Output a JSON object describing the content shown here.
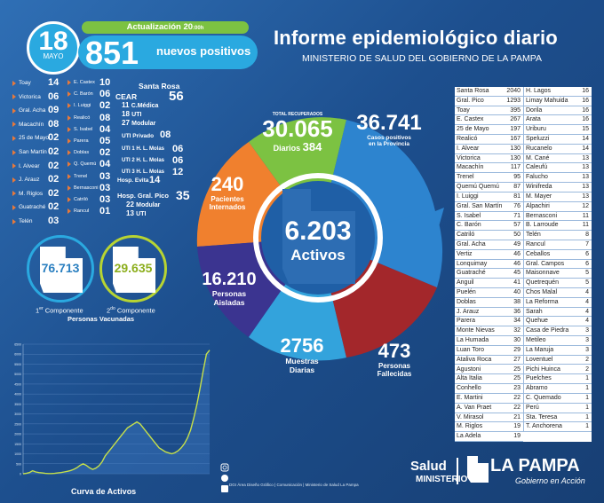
{
  "header": {
    "day": "18",
    "month": "MAYO",
    "update_label": "Actualización 20",
    "update_time": ":00h",
    "new_positive_count": "851",
    "new_positive_label": "nuevos positivos",
    "title": "Informe epidemiológico diario",
    "subtitle": "MINISTERIO DE SALUD DEL GOBIERNO DE LA PAMPA"
  },
  "colors": {
    "bg": "#1d4f8e",
    "green": "#7cc242",
    "cyan": "#2aa9e0",
    "orange": "#f0802e",
    "purple": "#3b3490",
    "lightblue": "#33a3dc",
    "red": "#a3272b",
    "blue": "#2d84cf",
    "arrow": "#e8793a"
  },
  "localities_left": [
    {
      "name": "Toay",
      "value": "14"
    },
    {
      "name": "Victorica",
      "value": "06"
    },
    {
      "name": "Gral. Acha",
      "value": "09"
    },
    {
      "name": "Macachín",
      "value": "08"
    },
    {
      "name": "25 de Mayo",
      "value": "02"
    },
    {
      "name": "San Martín",
      "value": "02"
    },
    {
      "name": "I. Alvear",
      "value": "02"
    },
    {
      "name": "J. Arauz",
      "value": "02"
    },
    {
      "name": "M. Riglos",
      "value": "02"
    },
    {
      "name": "Guatraché",
      "value": "02"
    },
    {
      "name": "Telén",
      "value": "03"
    }
  ],
  "localities_mid": [
    {
      "name": "E. Castex",
      "value": "10"
    },
    {
      "name": "C. Barón",
      "value": "06"
    },
    {
      "name": "I. Luiggi",
      "value": "02"
    },
    {
      "name": "Realicó",
      "value": "08"
    },
    {
      "name": "S. Isabel",
      "value": "04"
    },
    {
      "name": "Parera",
      "value": "05"
    },
    {
      "name": "Doblas",
      "value": "02"
    },
    {
      "name": "Q. Quemú",
      "value": "04"
    },
    {
      "name": "Trenel",
      "value": "03"
    },
    {
      "name": "Bernasconi",
      "value": "03"
    },
    {
      "name": "Catriló",
      "value": "03"
    },
    {
      "name": "Rancul",
      "value": "01"
    }
  ],
  "santa_rosa": {
    "title": "Santa Rosa",
    "total": "56",
    "items": [
      {
        "value": "",
        "name": "CEAR"
      },
      {
        "value": "11",
        "name": "C.Médica"
      },
      {
        "value": "18",
        "name": "UTI"
      },
      {
        "value": "27",
        "name": "Modular"
      },
      {
        "value": "",
        "name": "UTI Privado"
      },
      {
        "value": "",
        "name": "UTI 1 H. L. Molas"
      },
      {
        "value": "",
        "name": "UTI 2 H. L. Molas"
      },
      {
        "value": "",
        "name": "UTI 3 H. L. Molas"
      },
      {
        "value": "",
        "name": "Hosp. Evita"
      }
    ],
    "uti_privado": "08",
    "uti1": "06",
    "uti2": "06",
    "uti3": "12",
    "evita": "14"
  },
  "general_pico": {
    "title": "Hosp. Gral. Pico",
    "total": "35",
    "modular_value": "22",
    "modular_label": "Modular",
    "uti_value": "13",
    "uti_label": "UTI"
  },
  "vaccines": {
    "first_value": "76.713",
    "first_label_num": "1",
    "first_label_sup": "er",
    "first_label_text": " Componente",
    "second_value": "29.635",
    "second_label_num": "2",
    "second_label_sup": "do",
    "second_label_text": " Componente",
    "caption": "Personas Vacunadas"
  },
  "chart_data": {
    "type": "line",
    "title": "Curva de Activos",
    "ylim": [
      0,
      6500
    ],
    "yticks": [
      "0",
      "500",
      "1000",
      "1500",
      "2000",
      "2500",
      "3000",
      "3500",
      "4000",
      "4500",
      "5000",
      "5500",
      "6000",
      "6500"
    ],
    "series": [
      {
        "values": [
          0,
          20,
          60,
          150,
          90,
          60,
          40,
          20,
          10,
          10,
          20,
          40,
          60,
          90,
          120,
          160,
          220,
          300,
          420,
          500,
          420,
          300,
          220,
          280,
          400,
          600,
          900,
          1100,
          1300,
          1500,
          1700,
          1900,
          2100,
          2300,
          2400,
          2500,
          2600,
          2500,
          2300,
          2100,
          1900,
          1700,
          1500,
          1300,
          1200,
          1100,
          1050,
          1000,
          1050,
          1150,
          1300,
          1500,
          1800,
          2200,
          2800,
          3500,
          4300,
          5200,
          6000,
          6203
        ]
      }
    ]
  },
  "wheel": {
    "recovered_label": "TOTAL RECUPERADOS",
    "recovered": "30.065",
    "daily_label": "Diarios",
    "daily": "384",
    "cases": "36.741",
    "cases_label1": "Casos positivos",
    "cases_label2": "en la Provincia",
    "hospital": "240",
    "hospital_label1": "Pacientes",
    "hospital_label2": "Internados",
    "isolated": "16.210",
    "isolated_label1": "Personas",
    "isolated_label2": "Aisladas",
    "tests": "2756",
    "tests_label1": "Muestras",
    "tests_label2": "Diarias",
    "deaths": "473",
    "deaths_label1": "Personas",
    "deaths_label2": "Fallecidas",
    "active": "6.203",
    "active_label": "Activos"
  },
  "table_left": [
    {
      "name": "Santa Rosa",
      "value": "2040"
    },
    {
      "name": "Gral. Pico",
      "value": "1293"
    },
    {
      "name": "Toay",
      "value": "395"
    },
    {
      "name": "E. Castex",
      "value": "267"
    },
    {
      "name": "25 de Mayo",
      "value": "197"
    },
    {
      "name": "Realicó",
      "value": "167"
    },
    {
      "name": "I. Alvear",
      "value": "130"
    },
    {
      "name": "Victorica",
      "value": "130"
    },
    {
      "name": "Macachín",
      "value": "117"
    },
    {
      "name": "Trenel",
      "value": "95"
    },
    {
      "name": "Quemú Quemú",
      "value": "87"
    },
    {
      "name": "I. Luiggi",
      "value": "81"
    },
    {
      "name": "Gral. San Martín",
      "value": "76"
    },
    {
      "name": "S. Isabel",
      "value": "71"
    },
    {
      "name": "C. Barón",
      "value": "57"
    },
    {
      "name": "Catriló",
      "value": "50"
    },
    {
      "name": "Gral. Acha",
      "value": "49"
    },
    {
      "name": "Vertiz",
      "value": "46"
    },
    {
      "name": "Lonquimay",
      "value": "46"
    },
    {
      "name": "Guatraché",
      "value": "45"
    },
    {
      "name": "Anguil",
      "value": "41"
    },
    {
      "name": "Puelén",
      "value": "40"
    },
    {
      "name": "Doblas",
      "value": "38"
    },
    {
      "name": "J. Arauz",
      "value": "36"
    },
    {
      "name": "Parera",
      "value": "34"
    },
    {
      "name": "Monte Nievas",
      "value": "32"
    },
    {
      "name": "La Humada",
      "value": "30"
    },
    {
      "name": "Luan Toro",
      "value": "29"
    },
    {
      "name": "Ataliva Roca",
      "value": "27"
    },
    {
      "name": "Agustoni",
      "value": "25"
    },
    {
      "name": "Alta Italia",
      "value": "25"
    },
    {
      "name": "Conhello",
      "value": "23"
    },
    {
      "name": "E. Martini",
      "value": "22"
    },
    {
      "name": "A. Van Praet",
      "value": "22"
    },
    {
      "name": "V. Mirasol",
      "value": "21"
    },
    {
      "name": "M. Riglos",
      "value": "19"
    },
    {
      "name": "La Adela",
      "value": "19"
    }
  ],
  "table_right": [
    {
      "name": "H. Lagos",
      "value": "16"
    },
    {
      "name": "Limay Mahuida",
      "value": "16"
    },
    {
      "name": "Dorila",
      "value": "16"
    },
    {
      "name": "Arata",
      "value": "16"
    },
    {
      "name": "Uriburu",
      "value": "15"
    },
    {
      "name": "Speluzzi",
      "value": "14"
    },
    {
      "name": "Rucanelo",
      "value": "14"
    },
    {
      "name": "M. Cané",
      "value": "13"
    },
    {
      "name": "Caleufú",
      "value": "13"
    },
    {
      "name": "Falucho",
      "value": "13"
    },
    {
      "name": "Winifreda",
      "value": "13"
    },
    {
      "name": "M. Mayer",
      "value": "13"
    },
    {
      "name": "Alpachiri",
      "value": "12"
    },
    {
      "name": "Bernasconi",
      "value": "11"
    },
    {
      "name": "B. Larroude",
      "value": "11"
    },
    {
      "name": "Telén",
      "value": "8"
    },
    {
      "name": "Rancul",
      "value": "7"
    },
    {
      "name": "Ceballos",
      "value": "6"
    },
    {
      "name": "Gral. Campos",
      "value": "6"
    },
    {
      "name": "Maisonnave",
      "value": "5"
    },
    {
      "name": "Quetrequén",
      "value": "5"
    },
    {
      "name": "Chos Malal",
      "value": "4"
    },
    {
      "name": "La Reforma",
      "value": "4"
    },
    {
      "name": "Sarah",
      "value": "4"
    },
    {
      "name": "Quehue",
      "value": "4"
    },
    {
      "name": "Casa de Piedra",
      "value": "3"
    },
    {
      "name": "Metileo",
      "value": "3"
    },
    {
      "name": "La Maruja",
      "value": "3"
    },
    {
      "name": "Loventuel",
      "value": "2"
    },
    {
      "name": "Pichi Huinca",
      "value": "2"
    },
    {
      "name": "Puelches",
      "value": "1"
    },
    {
      "name": "Abramo",
      "value": "1"
    },
    {
      "name": "C. Quemado",
      "value": "1"
    },
    {
      "name": "Perú",
      "value": "1"
    },
    {
      "name": "Sta. Teresa",
      "value": "1"
    },
    {
      "name": "T. Anchorena",
      "value": "1"
    }
  ],
  "footer": {
    "credit": "DGI Área Diseño Gráfico | Comunicación | Ministerio de Salud La Pampa",
    "salud": "Salud",
    "ministerio": "MINISTERIO",
    "lapampa": "LA PAMPA",
    "gobierno": "Gobierno en Acción",
    "social_icons": [
      "instagram-icon",
      "twitter-icon",
      "facebook-icon"
    ]
  }
}
